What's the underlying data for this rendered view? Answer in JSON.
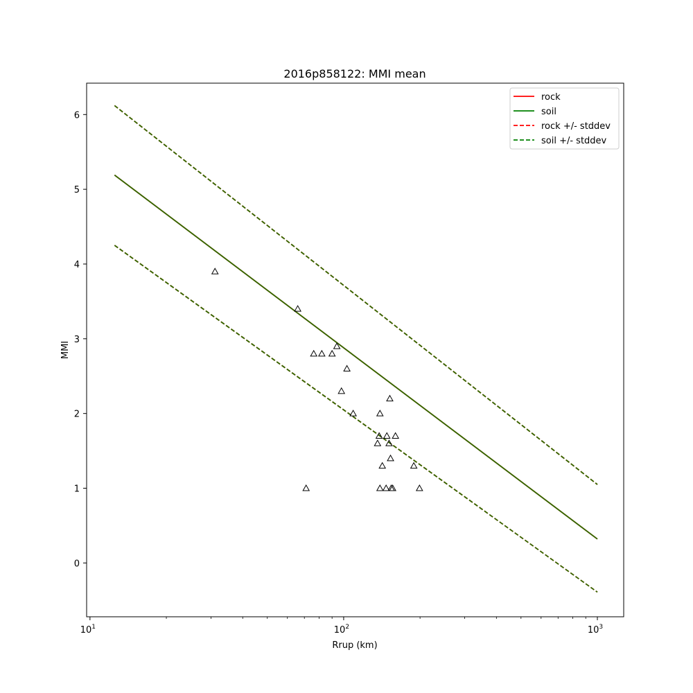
{
  "chart_data": {
    "type": "scatter",
    "title": "2016p858122: MMI mean",
    "xlabel": "Rrup (km)",
    "ylabel": "MMI",
    "xscale": "log",
    "xlim": [
      9.7,
      1270
    ],
    "ylim": [
      -0.72,
      6.42
    ],
    "x_ticks": [
      {
        "value": 10,
        "base": "10",
        "exp": "1"
      },
      {
        "value": 100,
        "base": "10",
        "exp": "2"
      },
      {
        "value": 1000,
        "base": "10",
        "exp": "3"
      }
    ],
    "y_ticks": [
      "0",
      "1",
      "2",
      "3",
      "4",
      "5",
      "6"
    ],
    "grid": false,
    "legend_position": "top-right",
    "colors": {
      "rock": "#ff0000",
      "soil": "#008000",
      "soil_rock_overlap": "#2e6b00",
      "points": "#000000"
    },
    "series": [
      {
        "name": "rock",
        "style": "solid",
        "color": "#ff0000",
        "x": [
          12.5,
          1000
        ],
        "y": [
          5.19,
          0.32
        ]
      },
      {
        "name": "soil",
        "style": "solid",
        "color": "#008000",
        "x": [
          12.5,
          1000
        ],
        "y": [
          5.19,
          0.32
        ]
      },
      {
        "name": "rock +/- stddev",
        "style": "dashed",
        "color": "#ff0000",
        "x": [
          12.5,
          1000
        ],
        "y_upper": [
          6.12,
          1.05
        ],
        "y_lower": [
          4.25,
          -0.39
        ]
      },
      {
        "name": "soil +/- stddev",
        "style": "dashed",
        "color": "#008000",
        "x": [
          12.5,
          1000
        ],
        "y_upper": [
          6.12,
          1.05
        ],
        "y_lower": [
          4.25,
          -0.39
        ]
      }
    ],
    "points": [
      {
        "x": 31.1,
        "y": 3.9
      },
      {
        "x": 65.9,
        "y": 3.4
      },
      {
        "x": 71.1,
        "y": 1.0
      },
      {
        "x": 76.2,
        "y": 2.8
      },
      {
        "x": 82.0,
        "y": 2.8
      },
      {
        "x": 90.0,
        "y": 2.8
      },
      {
        "x": 94.0,
        "y": 2.9
      },
      {
        "x": 98.0,
        "y": 2.3
      },
      {
        "x": 103.0,
        "y": 2.6
      },
      {
        "x": 109.0,
        "y": 2.0
      },
      {
        "x": 136.0,
        "y": 1.6
      },
      {
        "x": 138.0,
        "y": 1.7
      },
      {
        "x": 139.0,
        "y": 2.0
      },
      {
        "x": 139.0,
        "y": 1.0
      },
      {
        "x": 142.0,
        "y": 1.3
      },
      {
        "x": 147.0,
        "y": 1.0
      },
      {
        "x": 148.0,
        "y": 1.7
      },
      {
        "x": 151.0,
        "y": 1.6
      },
      {
        "x": 152.0,
        "y": 2.2
      },
      {
        "x": 153.0,
        "y": 1.4
      },
      {
        "x": 154.0,
        "y": 1.0
      },
      {
        "x": 156.0,
        "y": 1.0
      },
      {
        "x": 160.0,
        "y": 1.7
      },
      {
        "x": 189.0,
        "y": 1.3
      },
      {
        "x": 199.0,
        "y": 1.0
      }
    ]
  }
}
